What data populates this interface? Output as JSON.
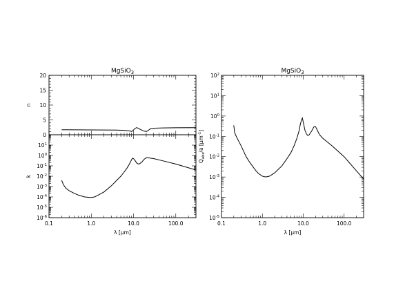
{
  "colors": {
    "background": "#ffffff",
    "ink": "#000000"
  },
  "chart_data": [
    {
      "type": "line",
      "title": "MgSiO3",
      "xlabel": "",
      "ylabel": "n",
      "xscale": "log",
      "yscale": "linear",
      "xlim": [
        0.1,
        300
      ],
      "ylim": [
        0,
        20
      ],
      "yticks": [
        "0",
        "5",
        "10",
        "15",
        "20"
      ],
      "xticks": [],
      "x": [
        0.2,
        0.5,
        1.0,
        2.0,
        4.0,
        6.0,
        8.0,
        9.0,
        10.0,
        11.0,
        12.0,
        14.0,
        16.0,
        18.0,
        20.0,
        22.0,
        25.0,
        30.0,
        50.0,
        100.0,
        300.0
      ],
      "series": [
        {
          "values": [
            1.7,
            1.65,
            1.62,
            1.6,
            1.55,
            1.5,
            1.3,
            1.1,
            1.6,
            2.2,
            2.4,
            1.9,
            1.5,
            1.2,
            1.1,
            1.4,
            2.0,
            2.2,
            2.3,
            2.35,
            2.4
          ]
        }
      ]
    },
    {
      "type": "line",
      "title": "",
      "xlabel": "λ [μm]",
      "ylabel": "k",
      "xscale": "log",
      "yscale": "log",
      "xlim": [
        0.1,
        300
      ],
      "ylim": [
        1e-06,
        100
      ],
      "yticks": [
        "10^1",
        "10^0",
        "10^-1",
        "10^-2",
        "10^-3",
        "10^-4",
        "10^-5",
        "10^-6"
      ],
      "xticks": [
        "0.1",
        "1.0",
        "10.0",
        "100.0"
      ],
      "x": [
        0.2,
        0.22,
        0.25,
        0.3,
        0.4,
        0.5,
        0.7,
        0.9,
        1.0,
        1.2,
        1.5,
        2.0,
        3.0,
        4.0,
        5.0,
        6.0,
        7.0,
        8.0,
        9.0,
        9.5,
        10.0,
        11.0,
        12.0,
        13.0,
        14.0,
        16.0,
        18.0,
        20.0,
        22.0,
        25.0,
        30.0,
        50.0,
        100.0,
        300.0
      ],
      "series": [
        {
          "values": [
            0.004,
            0.0015,
            0.0007,
            0.0004,
            0.00022,
            0.00015,
            0.0001,
            9e-05,
            9e-05,
            0.0001,
            0.00016,
            0.0003,
            0.0012,
            0.004,
            0.01,
            0.025,
            0.06,
            0.15,
            0.4,
            0.55,
            0.5,
            0.3,
            0.18,
            0.15,
            0.16,
            0.25,
            0.45,
            0.6,
            0.62,
            0.55,
            0.5,
            0.3,
            0.15,
            0.04
          ]
        }
      ]
    },
    {
      "type": "line",
      "title": "MgSiO3",
      "xlabel": "λ [μm]",
      "ylabel": "Qabs/a [μm^-1]",
      "xscale": "log",
      "yscale": "log",
      "xlim": [
        0.1,
        300
      ],
      "ylim": [
        1e-05,
        100
      ],
      "yticks": [
        "10^2",
        "10^1",
        "10^0",
        "10^-1",
        "10^-2",
        "10^-3",
        "10^-4",
        "10^-5"
      ],
      "xticks": [
        "0.1",
        "1.0",
        "10.0",
        "100.0"
      ],
      "x": [
        0.2,
        0.21,
        0.23,
        0.25,
        0.3,
        0.35,
        0.4,
        0.5,
        0.6,
        0.7,
        0.8,
        1.0,
        1.2,
        1.5,
        2.0,
        3.0,
        4.0,
        5.0,
        6.0,
        7.0,
        8.0,
        8.5,
        9.0,
        9.5,
        10.0,
        11.0,
        12.0,
        13.0,
        14.0,
        16.0,
        18.0,
        19.0,
        20.0,
        22.0,
        25.0,
        30.0,
        50.0,
        100.0,
        200.0,
        300.0
      ],
      "series": [
        {
          "values": [
            0.35,
            0.15,
            0.1,
            0.07,
            0.035,
            0.018,
            0.01,
            0.005,
            0.003,
            0.002,
            0.0015,
            0.0011,
            0.001,
            0.0011,
            0.0016,
            0.0035,
            0.008,
            0.016,
            0.035,
            0.08,
            0.2,
            0.4,
            0.6,
            0.8,
            0.5,
            0.2,
            0.13,
            0.11,
            0.12,
            0.18,
            0.28,
            0.3,
            0.3,
            0.2,
            0.12,
            0.08,
            0.035,
            0.01,
            0.002,
            0.0008
          ]
        }
      ]
    }
  ]
}
